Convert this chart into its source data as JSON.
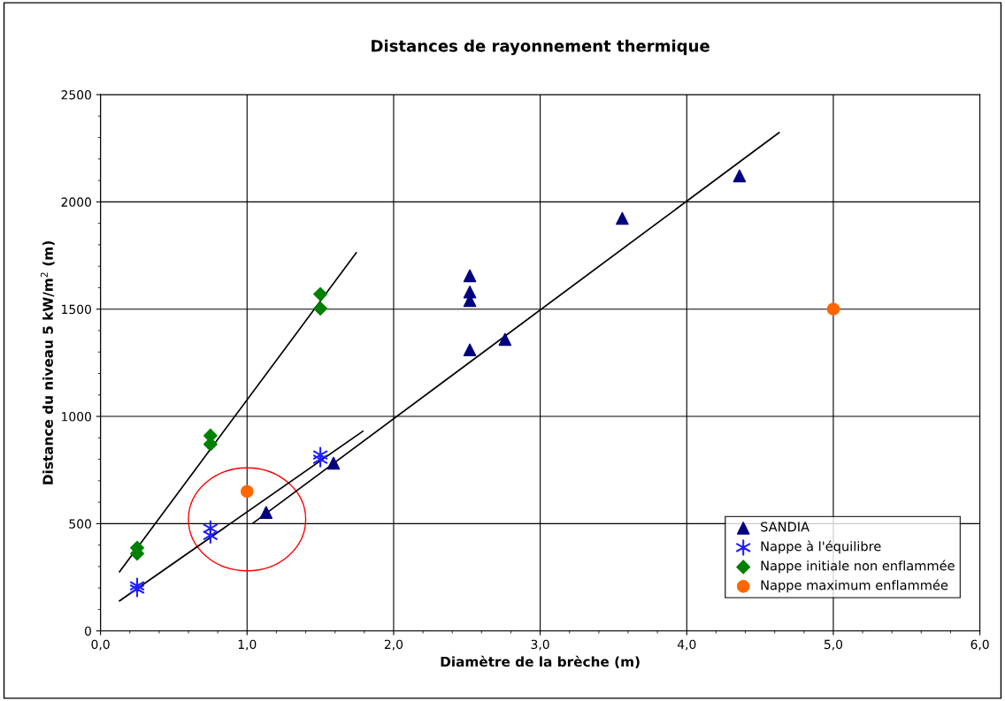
{
  "chart_data": {
    "type": "scatter",
    "title": "Distances de rayonnement thermique",
    "xlabel": "Diamètre de la brèche (m)",
    "ylabel": "Distance du niveau 5 kW/m$^{2}$ (m)",
    "xlim": [
      0,
      6
    ],
    "xticks": [
      {
        "value": 0,
        "label": "0,0"
      },
      {
        "value": 1,
        "label": "1,0"
      },
      {
        "value": 2,
        "label": "2,0"
      },
      {
        "value": 3,
        "label": "3,0"
      },
      {
        "value": 4,
        "label": "4,0"
      },
      {
        "value": 5,
        "label": "5,0"
      },
      {
        "value": 6,
        "label": "6,0"
      }
    ],
    "ylim": [
      0,
      2500
    ],
    "yticks": [
      0,
      500,
      1000,
      1500,
      2000,
      2500
    ],
    "grid": true,
    "legend": "bottom right",
    "series": [
      {
        "name": "SANDIA",
        "color": "#000080",
        "marker": "triangle",
        "x": [
          1.13,
          1.59,
          2.52,
          2.52,
          2.52,
          2.52,
          2.76,
          3.56,
          4.36
        ],
        "values": [
          552,
          782,
          1310,
          1540,
          1580,
          1656,
          1359,
          1923,
          2121
        ]
      },
      {
        "name": "Nappe à l'équilibre",
        "color": "#1f1fff",
        "marker": "cross",
        "x": [
          0.25,
          0.25,
          0.75,
          0.75,
          1.5,
          1.5
        ],
        "values": [
          210,
          195,
          478,
          445,
          820,
          800
        ]
      },
      {
        "name": "Nappe initiale non enflammée",
        "color": "#008000",
        "marker": "diamond",
        "x": [
          0.25,
          0.25,
          0.75,
          0.75,
          1.5,
          1.5
        ],
        "values": [
          387,
          360,
          910,
          870,
          1570,
          1503
        ]
      },
      {
        "name": "Nappe maximum enflammée",
        "color": "#ff6600",
        "marker": "circle",
        "x": [
          1.0,
          5.0
        ],
        "values": [
          650,
          1500
        ]
      },
      {
        "type": "line",
        "color": "#000000",
        "x": [
          0.13,
          1.745
        ],
        "values": [
          276,
          1763
        ]
      },
      {
        "type": "line",
        "color": "#000000",
        "x": [
          0.13,
          1.79
        ],
        "values": [
          140,
          931
        ]
      },
      {
        "type": "line",
        "color": "#000000",
        "x": [
          1.04,
          4.63
        ],
        "values": [
          502,
          2323
        ]
      }
    ]
  }
}
